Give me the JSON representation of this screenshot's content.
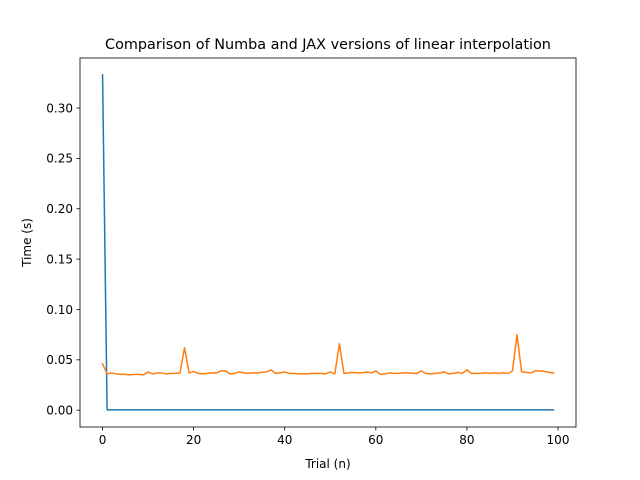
{
  "chart_data": {
    "type": "line",
    "title": "Comparison of Numba and JAX versions of linear interpolation",
    "xlabel": "Trial (n)",
    "ylabel": "Time (s)",
    "xlim": [
      -4.95,
      103.95
    ],
    "ylim": [
      -0.0167,
      0.3497
    ],
    "xticks": [
      0,
      20,
      40,
      60,
      80,
      100
    ],
    "yticks": [
      0.0,
      0.05,
      0.1,
      0.15,
      0.2,
      0.25,
      0.3
    ],
    "xtick_labels": [
      "0",
      "20",
      "40",
      "60",
      "80",
      "100"
    ],
    "ytick_labels": [
      "0.00",
      "0.05",
      "0.10",
      "0.15",
      "0.20",
      "0.25",
      "0.30"
    ],
    "grid": false,
    "series": [
      {
        "color": "#1f77b4",
        "x": [
          0,
          1,
          2,
          99
        ],
        "y": [
          0.333,
          0.0003,
          0.0003,
          0.0003
        ]
      },
      {
        "color": "#ff7f0e",
        "x": [
          0,
          1,
          2,
          3,
          4,
          5,
          6,
          7,
          8,
          9,
          10,
          11,
          12,
          13,
          14,
          15,
          16,
          17,
          18,
          19,
          20,
          21,
          22,
          23,
          24,
          25,
          26,
          27,
          28,
          29,
          30,
          31,
          32,
          33,
          34,
          35,
          36,
          37,
          38,
          39,
          40,
          41,
          42,
          43,
          44,
          45,
          46,
          47,
          48,
          49,
          50,
          51,
          52,
          53,
          54,
          55,
          56,
          57,
          58,
          59,
          60,
          61,
          62,
          63,
          64,
          65,
          66,
          67,
          68,
          69,
          70,
          71,
          72,
          73,
          74,
          75,
          76,
          77,
          78,
          79,
          80,
          81,
          82,
          83,
          84,
          85,
          86,
          87,
          88,
          89,
          90,
          91,
          92,
          93,
          94,
          95,
          96,
          97,
          98,
          99
        ],
        "y": [
          0.046,
          0.036,
          0.037,
          0.036,
          0.0355,
          0.0355,
          0.035,
          0.0355,
          0.0355,
          0.035,
          0.038,
          0.036,
          0.037,
          0.037,
          0.036,
          0.0365,
          0.0365,
          0.037,
          0.062,
          0.037,
          0.0385,
          0.0365,
          0.036,
          0.0365,
          0.037,
          0.037,
          0.039,
          0.039,
          0.036,
          0.0365,
          0.038,
          0.037,
          0.0365,
          0.037,
          0.037,
          0.0375,
          0.038,
          0.04,
          0.0365,
          0.037,
          0.038,
          0.0365,
          0.0365,
          0.036,
          0.036,
          0.036,
          0.0365,
          0.0365,
          0.0365,
          0.036,
          0.038,
          0.036,
          0.066,
          0.0365,
          0.037,
          0.0375,
          0.037,
          0.037,
          0.038,
          0.037,
          0.039,
          0.0355,
          0.036,
          0.037,
          0.0365,
          0.0365,
          0.037,
          0.037,
          0.0365,
          0.0365,
          0.039,
          0.0365,
          0.036,
          0.0365,
          0.037,
          0.038,
          0.036,
          0.0365,
          0.0375,
          0.0365,
          0.04,
          0.0365,
          0.0365,
          0.0365,
          0.037,
          0.0365,
          0.037,
          0.0365,
          0.037,
          0.0365,
          0.039,
          0.075,
          0.038,
          0.0375,
          0.037,
          0.039,
          0.039,
          0.0385,
          0.0375,
          0.037
        ]
      }
    ]
  }
}
